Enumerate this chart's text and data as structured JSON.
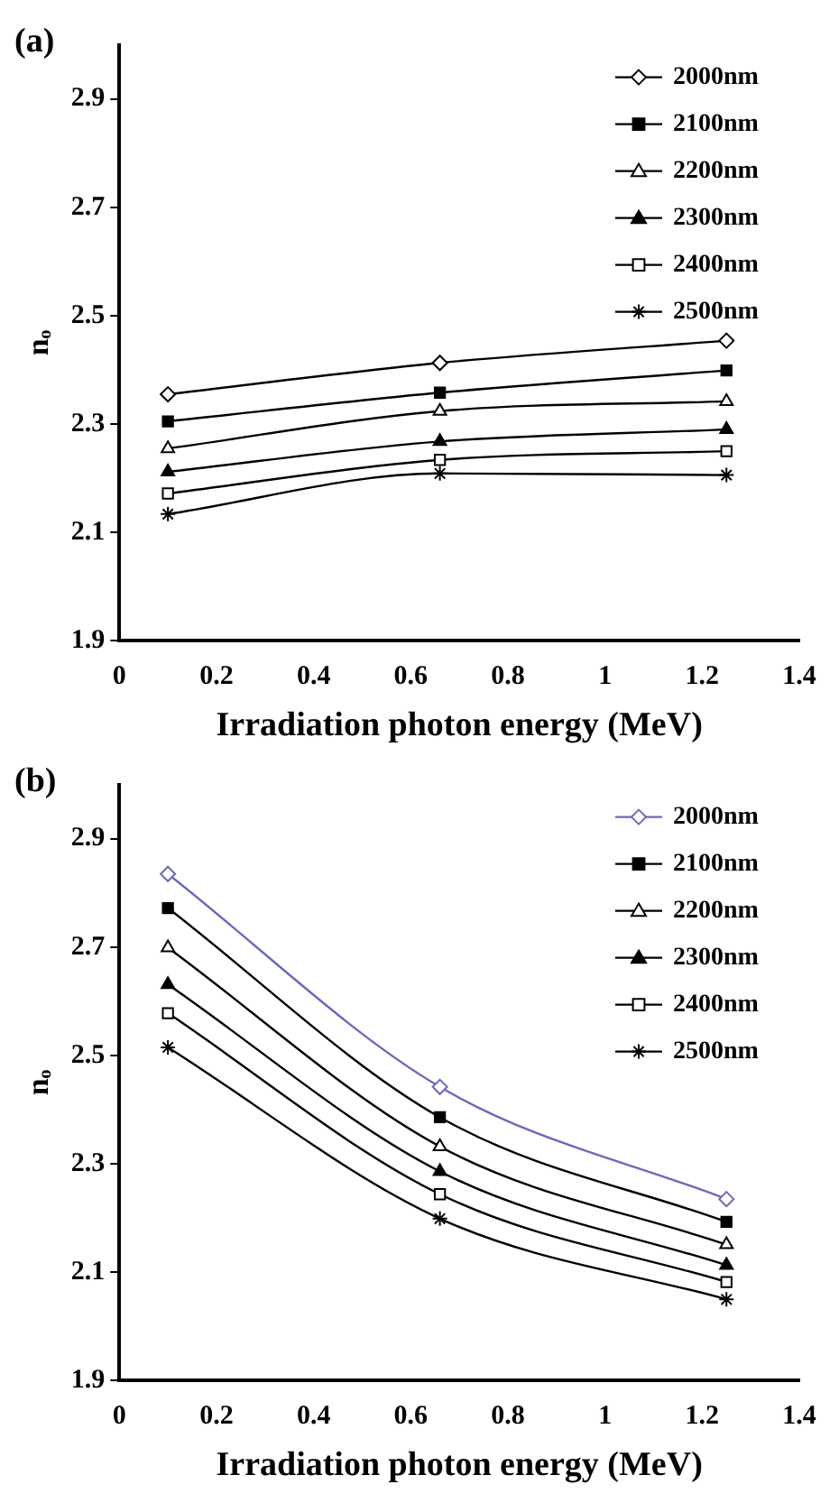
{
  "chart_data": [
    {
      "type": "line",
      "title": "(a)",
      "xlabel": "Irradiation photon energy (MeV)",
      "ylabel": "nₒ",
      "x": [
        0.1,
        0.66,
        1.25
      ],
      "xlim": [
        0,
        1.4
      ],
      "xticks": [
        0,
        0.2,
        0.4,
        0.6,
        0.8,
        1,
        1.2,
        1.4
      ],
      "ylim": [
        1.9,
        3.0
      ],
      "yticks": [
        1.9,
        2.1,
        2.3,
        2.5,
        2.7,
        2.9
      ],
      "grid": false,
      "legend": "top right",
      "series": [
        {
          "name": "2000nm",
          "color": "#000000",
          "marker": "diamond",
          "values": [
            2.355,
            2.413,
            2.454
          ]
        },
        {
          "name": "2100nm",
          "color": "#000000",
          "marker": "square",
          "values": [
            2.305,
            2.358,
            2.399
          ]
        },
        {
          "name": "2200nm",
          "color": "#000000",
          "marker": "triangle",
          "values": [
            2.255,
            2.324,
            2.342
          ]
        },
        {
          "name": "2300nm",
          "color": "#000000",
          "marker": "triangle",
          "values": [
            2.212,
            2.268,
            2.29
          ]
        },
        {
          "name": "2400nm",
          "color": "#000000",
          "marker": "square",
          "values": [
            2.172,
            2.234,
            2.25
          ]
        },
        {
          "name": "2500nm",
          "color": "#000000",
          "marker": "cross",
          "values": [
            2.134,
            2.209,
            2.206
          ]
        }
      ]
    },
    {
      "type": "line",
      "title": "(b)",
      "xlabel": "Irradiation photon energy (MeV)",
      "ylabel": "nₒ",
      "x": [
        0.1,
        0.66,
        1.25
      ],
      "xlim": [
        0,
        1.4
      ],
      "xticks": [
        0,
        0.2,
        0.4,
        0.6,
        0.8,
        1,
        1.2,
        1.4
      ],
      "ylim": [
        1.9,
        3.0
      ],
      "yticks": [
        1.9,
        2.1,
        2.3,
        2.5,
        2.7,
        2.9
      ],
      "grid": false,
      "legend": "top right",
      "series": [
        {
          "name": "2000nm",
          "color": "#6a6ab8",
          "marker": "diamond",
          "values": [
            2.835,
            2.442,
            2.235
          ]
        },
        {
          "name": "2100nm",
          "color": "#000000",
          "marker": "square",
          "values": [
            2.772,
            2.386,
            2.193
          ]
        },
        {
          "name": "2200nm",
          "color": "#000000",
          "marker": "triangle",
          "values": [
            2.699,
            2.332,
            2.151
          ]
        },
        {
          "name": "2300nm",
          "color": "#000000",
          "marker": "triangle",
          "values": [
            2.631,
            2.286,
            2.113
          ]
        },
        {
          "name": "2400nm",
          "color": "#000000",
          "marker": "square",
          "values": [
            2.578,
            2.244,
            2.082
          ]
        },
        {
          "name": "2500nm",
          "color": "#000000",
          "marker": "cross",
          "values": [
            2.515,
            2.199,
            2.05
          ]
        }
      ]
    }
  ]
}
